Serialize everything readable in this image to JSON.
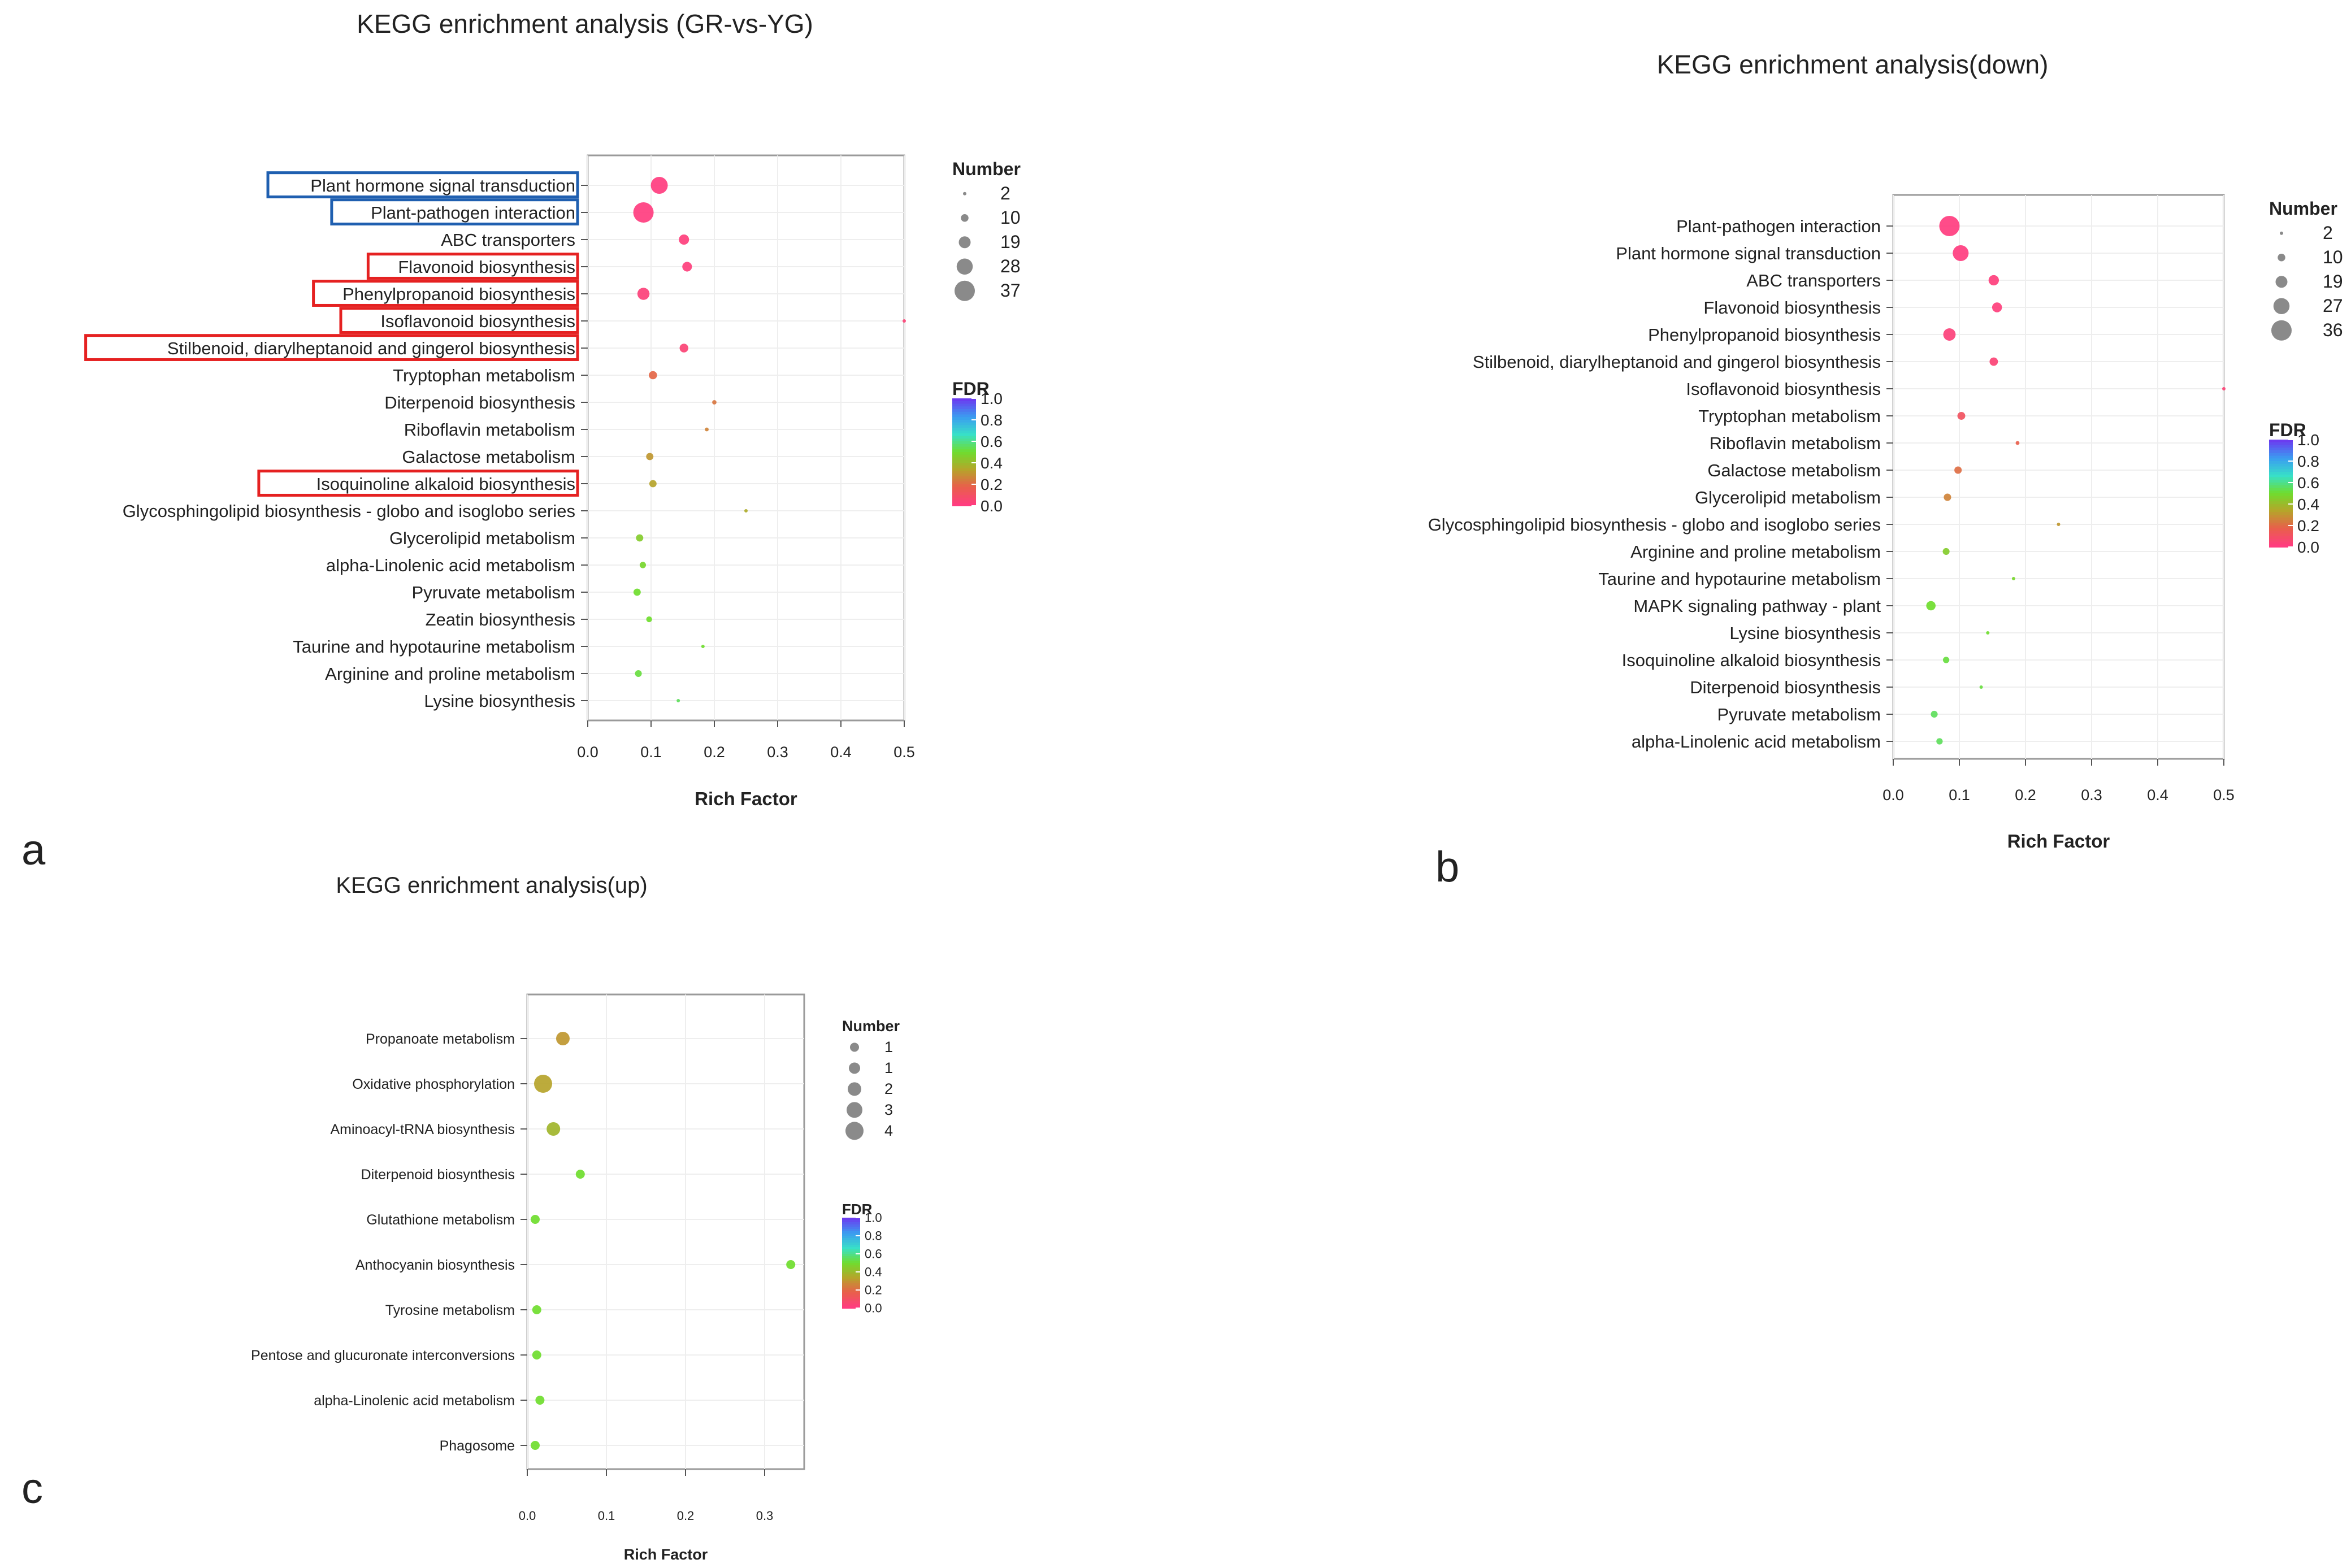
{
  "panel_labels": [
    "a",
    "b",
    "c"
  ],
  "chart_data": [
    {
      "type": "scatter",
      "title": "KEGG enrichment analysis (GR-vs-YG)",
      "xlabel": "Rich Factor",
      "xlim": [
        0.0,
        0.5
      ],
      "xticks": [
        "0.0",
        "0.1",
        "0.2",
        "0.3",
        "0.4",
        "0.5"
      ],
      "grid": true,
      "size_legend": {
        "title": "Number",
        "values": [
          2,
          10,
          19,
          28,
          37
        ]
      },
      "color_legend": {
        "title": "FDR",
        "ticks": [
          "1.0",
          "0.8",
          "0.6",
          "0.4",
          "0.2",
          "0.0"
        ],
        "colors": [
          "#ff3d7f",
          "#e8604a",
          "#b5a52a",
          "#6fdd2e",
          "#38e0c8",
          "#3a9df0",
          "#6a3cf0"
        ]
      },
      "pathways": [
        {
          "name": "Plant hormone signal transduction",
          "rich": 0.113,
          "number": 30,
          "fdr": 0.0,
          "highlight": "blue"
        },
        {
          "name": "Plant-pathogen interaction",
          "rich": 0.088,
          "number": 37,
          "fdr": 0.0,
          "highlight": "blue"
        },
        {
          "name": "ABC transporters",
          "rich": 0.152,
          "number": 16,
          "fdr": 0.01,
          "highlight": ""
        },
        {
          "name": "Flavonoid biosynthesis",
          "rich": 0.157,
          "number": 15,
          "fdr": 0.01,
          "highlight": "red"
        },
        {
          "name": "Phenylpropanoid biosynthesis",
          "rich": 0.088,
          "number": 20,
          "fdr": 0.02,
          "highlight": "red"
        },
        {
          "name": "Isoflavonoid biosynthesis",
          "rich": 0.5,
          "number": 2,
          "fdr": 0.03,
          "highlight": "red"
        },
        {
          "name": "Stilbenoid, diarylheptanoid and gingerol biosynthesis",
          "rich": 0.152,
          "number": 13,
          "fdr": 0.03,
          "highlight": "red"
        },
        {
          "name": "Tryptophan metabolism",
          "rich": 0.103,
          "number": 12,
          "fdr": 0.18,
          "highlight": ""
        },
        {
          "name": "Diterpenoid biosynthesis",
          "rich": 0.2,
          "number": 4,
          "fdr": 0.22,
          "highlight": ""
        },
        {
          "name": "Riboflavin metabolism",
          "rich": 0.188,
          "number": 3,
          "fdr": 0.25,
          "highlight": ""
        },
        {
          "name": "Galactose metabolism",
          "rich": 0.098,
          "number": 10,
          "fdr": 0.3,
          "highlight": ""
        },
        {
          "name": "Isoquinoline alkaloid biosynthesis",
          "rich": 0.103,
          "number": 10,
          "fdr": 0.33,
          "highlight": "red"
        },
        {
          "name": "Glycosphingolipid biosynthesis - globo and isoglobo series",
          "rich": 0.25,
          "number": 2,
          "fdr": 0.35,
          "highlight": ""
        },
        {
          "name": "Glycerolipid metabolism",
          "rich": 0.082,
          "number": 10,
          "fdr": 0.45,
          "highlight": ""
        },
        {
          "name": "alpha-Linolenic acid metabolism",
          "rich": 0.087,
          "number": 8,
          "fdr": 0.48,
          "highlight": ""
        },
        {
          "name": "Pyruvate metabolism",
          "rich": 0.078,
          "number": 10,
          "fdr": 0.5,
          "highlight": ""
        },
        {
          "name": "Zeatin biosynthesis",
          "rich": 0.097,
          "number": 7,
          "fdr": 0.5,
          "highlight": ""
        },
        {
          "name": "Taurine and hypotaurine metabolism",
          "rich": 0.182,
          "number": 2,
          "fdr": 0.5,
          "highlight": ""
        },
        {
          "name": "Arginine and proline metabolism",
          "rich": 0.08,
          "number": 9,
          "fdr": 0.52,
          "highlight": ""
        },
        {
          "name": "Lysine biosynthesis",
          "rich": 0.143,
          "number": 2,
          "fdr": 0.55,
          "highlight": ""
        }
      ]
    },
    {
      "type": "scatter",
      "title": "KEGG enrichment analysis(down)",
      "xlabel": "Rich Factor",
      "xlim": [
        0.0,
        0.5
      ],
      "xticks": [
        "0.0",
        "0.1",
        "0.2",
        "0.3",
        "0.4",
        "0.5"
      ],
      "grid": true,
      "size_legend": {
        "title": "Number",
        "values": [
          2,
          10,
          19,
          27,
          36
        ]
      },
      "color_legend": {
        "title": "FDR",
        "ticks": [
          "1.0",
          "0.8",
          "0.6",
          "0.4",
          "0.2",
          "0.0"
        ],
        "colors": [
          "#ff3d7f",
          "#e8604a",
          "#b5a52a",
          "#6fdd2e",
          "#38e0c8",
          "#3a9df0",
          "#6a3cf0"
        ]
      },
      "pathways": [
        {
          "name": "Plant-pathogen interaction",
          "rich": 0.085,
          "number": 36,
          "fdr": 0.0
        },
        {
          "name": "Plant hormone signal transduction",
          "rich": 0.102,
          "number": 27,
          "fdr": 0.0
        },
        {
          "name": "ABC transporters",
          "rich": 0.152,
          "number": 16,
          "fdr": 0.01
        },
        {
          "name": "Flavonoid biosynthesis",
          "rich": 0.157,
          "number": 15,
          "fdr": 0.01
        },
        {
          "name": "Phenylpropanoid biosynthesis",
          "rich": 0.085,
          "number": 20,
          "fdr": 0.02
        },
        {
          "name": "Stilbenoid, diarylheptanoid and gingerol biosynthesis",
          "rich": 0.152,
          "number": 12,
          "fdr": 0.03
        },
        {
          "name": "Isoflavonoid biosynthesis",
          "rich": 0.5,
          "number": 2,
          "fdr": 0.03
        },
        {
          "name": "Tryptophan metabolism",
          "rich": 0.103,
          "number": 11,
          "fdr": 0.1
        },
        {
          "name": "Riboflavin metabolism",
          "rich": 0.188,
          "number": 3,
          "fdr": 0.16
        },
        {
          "name": "Galactose metabolism",
          "rich": 0.098,
          "number": 10,
          "fdr": 0.2
        },
        {
          "name": "Glycerolipid metabolism",
          "rich": 0.082,
          "number": 10,
          "fdr": 0.25
        },
        {
          "name": "Glycosphingolipid biosynthesis - globo and isoglobo series",
          "rich": 0.25,
          "number": 2,
          "fdr": 0.3
        },
        {
          "name": "Arginine and proline metabolism",
          "rich": 0.08,
          "number": 9,
          "fdr": 0.45
        },
        {
          "name": "Taurine and hypotaurine metabolism",
          "rich": 0.182,
          "number": 2,
          "fdr": 0.48
        },
        {
          "name": "MAPK signaling pathway - plant",
          "rich": 0.057,
          "number": 14,
          "fdr": 0.5
        },
        {
          "name": "Lysine biosynthesis",
          "rich": 0.143,
          "number": 2,
          "fdr": 0.5
        },
        {
          "name": "Isoquinoline alkaloid biosynthesis",
          "rich": 0.08,
          "number": 8,
          "fdr": 0.52
        },
        {
          "name": "Diterpenoid biosynthesis",
          "rich": 0.133,
          "number": 2,
          "fdr": 0.52
        },
        {
          "name": "Pyruvate metabolism",
          "rich": 0.062,
          "number": 9,
          "fdr": 0.55
        },
        {
          "name": "alpha-Linolenic acid metabolism",
          "rich": 0.07,
          "number": 8,
          "fdr": 0.55
        }
      ]
    },
    {
      "type": "scatter",
      "title": "KEGG enrichment analysis(up)",
      "xlabel": "Rich Factor",
      "xlim": [
        0.0,
        0.35
      ],
      "xticks": [
        "0.0",
        "0.1",
        "0.2",
        "0.3"
      ],
      "grid": true,
      "size_legend": {
        "title": "Number",
        "values": [
          1,
          1,
          2,
          3,
          4
        ]
      },
      "color_legend": {
        "title": "FDR",
        "ticks": [
          "1.0",
          "0.8",
          "0.6",
          "0.4",
          "0.2",
          "0.0"
        ],
        "colors": [
          "#ff3d7f",
          "#e8604a",
          "#b5a52a",
          "#6fdd2e",
          "#38e0c8",
          "#3a9df0",
          "#6a3cf0"
        ]
      },
      "pathways": [
        {
          "name": "Propanoate metabolism",
          "rich": 0.045,
          "number": 3,
          "fdr": 0.3
        },
        {
          "name": "Oxidative phosphorylation",
          "rich": 0.02,
          "number": 4,
          "fdr": 0.33
        },
        {
          "name": "Aminoacyl-tRNA biosynthesis",
          "rich": 0.033,
          "number": 3,
          "fdr": 0.38
        },
        {
          "name": "Diterpenoid biosynthesis",
          "rich": 0.067,
          "number": 2,
          "fdr": 0.5
        },
        {
          "name": "Glutathione metabolism",
          "rich": 0.01,
          "number": 2,
          "fdr": 0.5
        },
        {
          "name": "Anthocyanin biosynthesis",
          "rich": 0.333,
          "number": 2,
          "fdr": 0.5
        },
        {
          "name": "Tyrosine metabolism",
          "rich": 0.012,
          "number": 2,
          "fdr": 0.5
        },
        {
          "name": "Pentose and glucuronate interconversions",
          "rich": 0.012,
          "number": 2,
          "fdr": 0.5
        },
        {
          "name": "alpha-Linolenic acid metabolism",
          "rich": 0.016,
          "number": 2,
          "fdr": 0.5
        },
        {
          "name": "Phagosome",
          "rich": 0.01,
          "number": 2,
          "fdr": 0.5
        }
      ]
    }
  ]
}
